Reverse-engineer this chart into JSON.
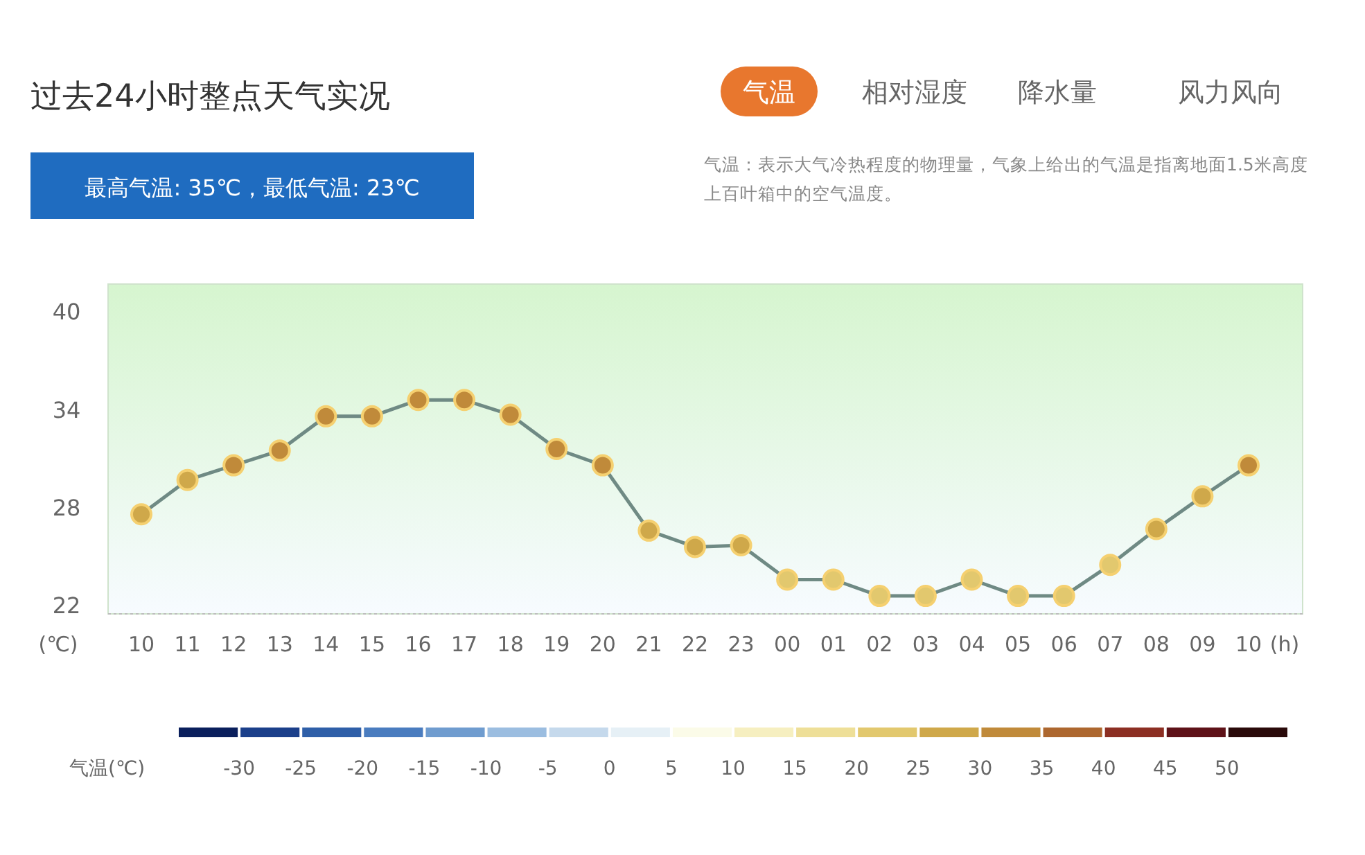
{
  "chart_data": {
    "type": "line",
    "title": "过去24小时整点天气实况",
    "subtitle": "最高气温: 35℃，最低气温: 23℃",
    "annotations": [
      "气温",
      "相对湿度",
      "降水量",
      "风力风向",
      "气温：表示大气冷热程度的物理量，气象上给出的气温是指离地面1.5米高度上百叶箱中的空气温度。"
    ],
    "categories": [
      "10",
      "11",
      "12",
      "13",
      "14",
      "15",
      "16",
      "17",
      "18",
      "19",
      "20",
      "21",
      "22",
      "23",
      "00",
      "01",
      "02",
      "03",
      "04",
      "05",
      "06",
      "07",
      "08",
      "09",
      "10"
    ],
    "series": [
      {
        "color": "#6f8a84",
        "values": [
          27.6,
          29.7,
          30.6,
          31.5,
          33.6,
          33.6,
          34.6,
          34.6,
          33.7,
          31.6,
          30.6,
          26.6,
          25.6,
          25.7,
          23.6,
          23.6,
          22.6,
          22.6,
          23.6,
          22.6,
          22.6,
          24.5,
          26.7,
          28.7,
          30.6
        ],
        "colors": [
          "#cfa84a",
          "#cfa84a",
          "#c08a3a",
          "#c08a3a",
          "#c08a3a",
          "#c08a3a",
          "#c08a3a",
          "#c08a3a",
          "#c08a3a",
          "#c08a3a",
          "#c08a3a",
          "#cfa84a",
          "#cfa84a",
          "#cfa84a",
          "#e2c86e",
          "#e2c86e",
          "#e2c86e",
          "#e2c86e",
          "#e2c86e",
          "#e2c86e",
          "#e2c86e",
          "#e2c86e",
          "#cfa84a",
          "#cfa84a",
          "#c08a3a"
        ]
      }
    ],
    "ylabel": "(℃)",
    "xlabel": "(h)",
    "ylim": [
      21.5,
      41.7
    ],
    "yticks": [
      22,
      28,
      34,
      40
    ],
    "marker": "circle",
    "clabel": "气温(℃)",
    "clim": [
      -35,
      55
    ],
    "cticks": [
      -30,
      -25,
      -20,
      -15,
      -10,
      -5,
      0,
      5,
      10,
      15,
      20,
      25,
      30,
      35,
      40,
      45,
      50
    ]
  }
}
